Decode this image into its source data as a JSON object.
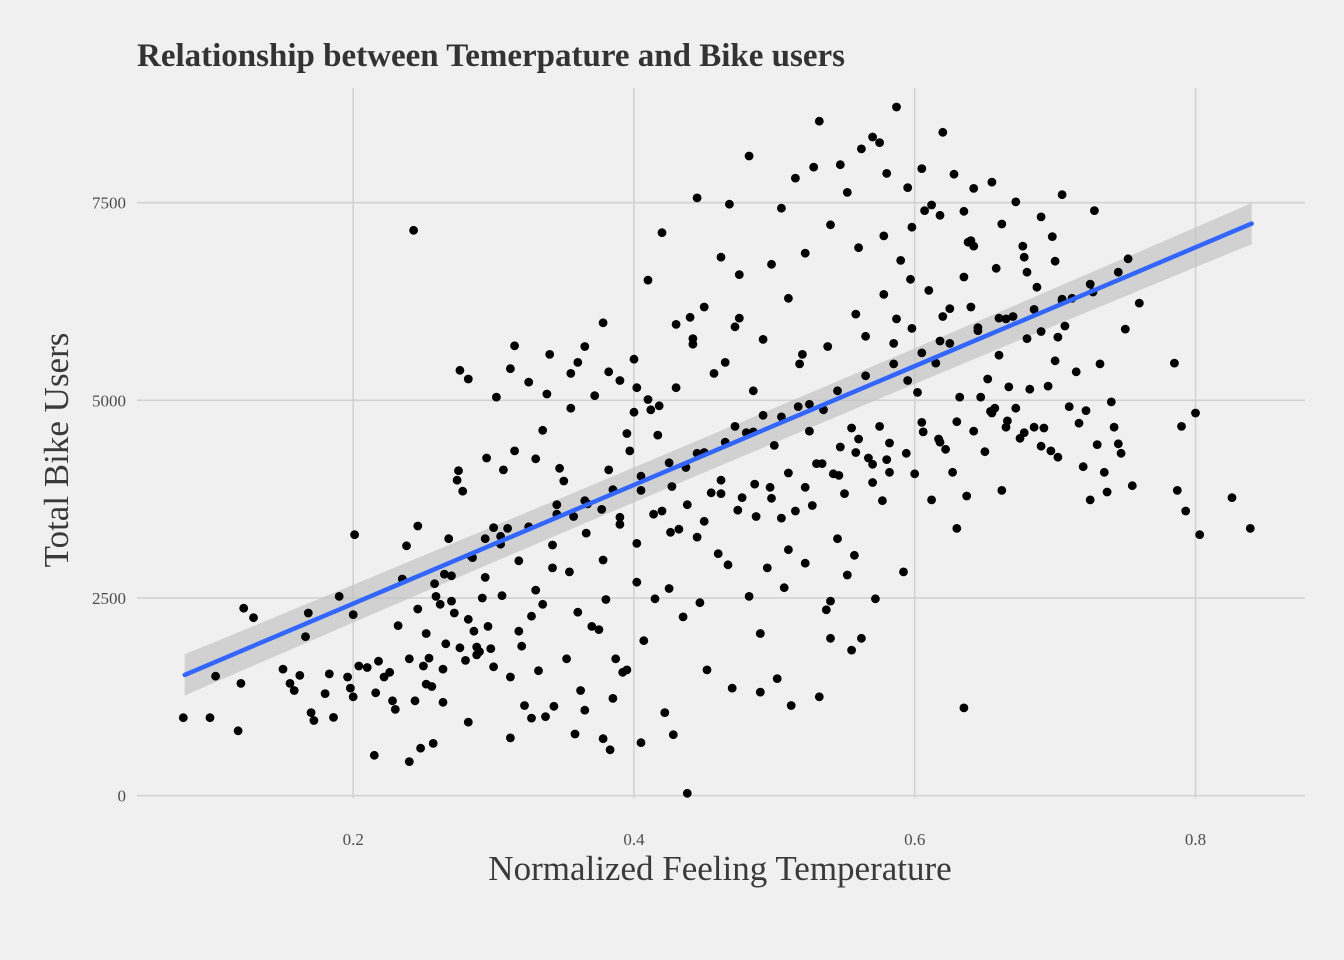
{
  "chart_data": {
    "type": "scatter",
    "title": "Relationship between Temerpature and Bike users",
    "xlabel": "Normalized Feeling Temperature",
    "ylabel": "Total Bike Users",
    "xlim": [
      0.046,
      0.878
    ],
    "ylim": [
      -30,
      8950
    ],
    "x_ticks": [
      0.2,
      0.4,
      0.6,
      0.8
    ],
    "x_tick_labels": [
      "0.2",
      "0.4",
      "0.6",
      "0.8"
    ],
    "y_ticks": [
      0,
      2500,
      5000,
      7500
    ],
    "y_tick_labels": [
      "0",
      "2500",
      "5000",
      "7500"
    ],
    "grid": true,
    "point_color": "#000000",
    "trend_color": "#3366ff",
    "band_color": "#bebebe",
    "trend": {
      "type": "linear",
      "x": [
        0.08,
        0.84
      ],
      "y": [
        1527,
        7235
      ],
      "ci_halfwidth": [
        260,
        220,
        260
      ]
    },
    "points": [
      [
        0.079,
        985
      ],
      [
        0.098,
        985
      ],
      [
        0.102,
        1510
      ],
      [
        0.118,
        820
      ],
      [
        0.12,
        1420
      ],
      [
        0.122,
        2370
      ],
      [
        0.129,
        2250
      ],
      [
        0.15,
        1600
      ],
      [
        0.155,
        1420
      ],
      [
        0.158,
        1330
      ],
      [
        0.162,
        1520
      ],
      [
        0.166,
        2010
      ],
      [
        0.168,
        2310
      ],
      [
        0.17,
        1050
      ],
      [
        0.172,
        950
      ],
      [
        0.18,
        1290
      ],
      [
        0.183,
        1540
      ],
      [
        0.186,
        990
      ],
      [
        0.19,
        2520
      ],
      [
        0.196,
        1500
      ],
      [
        0.198,
        1360
      ],
      [
        0.2,
        1250
      ],
      [
        0.2,
        2290
      ],
      [
        0.201,
        3300
      ],
      [
        0.21,
        1620
      ],
      [
        0.215,
        510
      ],
      [
        0.218,
        1700
      ],
      [
        0.222,
        1500
      ],
      [
        0.226,
        1560
      ],
      [
        0.23,
        1090
      ],
      [
        0.235,
        2740
      ],
      [
        0.238,
        3160
      ],
      [
        0.24,
        430
      ],
      [
        0.243,
        7150
      ],
      [
        0.244,
        1200
      ],
      [
        0.246,
        3410
      ],
      [
        0.248,
        600
      ],
      [
        0.25,
        1640
      ],
      [
        0.252,
        2050
      ],
      [
        0.254,
        1740
      ],
      [
        0.256,
        1380
      ],
      [
        0.257,
        660
      ],
      [
        0.259,
        2520
      ],
      [
        0.262,
        2420
      ],
      [
        0.264,
        1180
      ],
      [
        0.266,
        1920
      ],
      [
        0.268,
        3250
      ],
      [
        0.27,
        2780
      ],
      [
        0.272,
        2310
      ],
      [
        0.274,
        3990
      ],
      [
        0.276,
        5380
      ],
      [
        0.278,
        3850
      ],
      [
        0.28,
        1710
      ],
      [
        0.282,
        930
      ],
      [
        0.284,
        3030
      ],
      [
        0.286,
        2080
      ],
      [
        0.288,
        1880
      ],
      [
        0.29,
        1820
      ],
      [
        0.292,
        2500
      ],
      [
        0.294,
        3250
      ],
      [
        0.296,
        2140
      ],
      [
        0.298,
        1860
      ],
      [
        0.3,
        3390
      ],
      [
        0.302,
        5040
      ],
      [
        0.305,
        3280
      ],
      [
        0.307,
        4120
      ],
      [
        0.31,
        3380
      ],
      [
        0.312,
        730
      ],
      [
        0.315,
        5690
      ],
      [
        0.318,
        2080
      ],
      [
        0.32,
        1890
      ],
      [
        0.322,
        1140
      ],
      [
        0.325,
        5230
      ],
      [
        0.327,
        2270
      ],
      [
        0.33,
        4260
      ],
      [
        0.332,
        1580
      ],
      [
        0.335,
        2420
      ],
      [
        0.337,
        1000
      ],
      [
        0.34,
        5580
      ],
      [
        0.342,
        2880
      ],
      [
        0.345,
        3680
      ],
      [
        0.347,
        4140
      ],
      [
        0.35,
        3980
      ],
      [
        0.352,
        1730
      ],
      [
        0.355,
        5340
      ],
      [
        0.357,
        3530
      ],
      [
        0.36,
        2320
      ],
      [
        0.362,
        1330
      ],
      [
        0.365,
        1080
      ],
      [
        0.367,
        3690
      ],
      [
        0.37,
        2140
      ],
      [
        0.372,
        5060
      ],
      [
        0.375,
        2100
      ],
      [
        0.377,
        3620
      ],
      [
        0.38,
        2480
      ],
      [
        0.382,
        4120
      ],
      [
        0.385,
        1230
      ],
      [
        0.387,
        1730
      ],
      [
        0.39,
        3520
      ],
      [
        0.392,
        1560
      ],
      [
        0.395,
        4580
      ],
      [
        0.397,
        4360
      ],
      [
        0.4,
        5520
      ],
      [
        0.402,
        2700
      ],
      [
        0.405,
        3860
      ],
      [
        0.407,
        1960
      ],
      [
        0.41,
        5010
      ],
      [
        0.412,
        4880
      ],
      [
        0.415,
        2490
      ],
      [
        0.417,
        4560
      ],
      [
        0.42,
        3600
      ],
      [
        0.422,
        1050
      ],
      [
        0.425,
        2620
      ],
      [
        0.427,
        3910
      ],
      [
        0.43,
        5160
      ],
      [
        0.432,
        3370
      ],
      [
        0.435,
        2260
      ],
      [
        0.437,
        4150
      ],
      [
        0.44,
        6050
      ],
      [
        0.442,
        5780
      ],
      [
        0.445,
        3270
      ],
      [
        0.447,
        2440
      ],
      [
        0.45,
        4340
      ],
      [
        0.452,
        1590
      ],
      [
        0.455,
        3830
      ],
      [
        0.457,
        5340
      ],
      [
        0.46,
        3060
      ],
      [
        0.462,
        3990
      ],
      [
        0.465,
        5480
      ],
      [
        0.467,
        2920
      ],
      [
        0.47,
        1360
      ],
      [
        0.472,
        4670
      ],
      [
        0.475,
        6040
      ],
      [
        0.477,
        3770
      ],
      [
        0.48,
        4590
      ],
      [
        0.482,
        2520
      ],
      [
        0.485,
        5120
      ],
      [
        0.487,
        3530
      ],
      [
        0.49,
        1310
      ],
      [
        0.492,
        4810
      ],
      [
        0.495,
        2880
      ],
      [
        0.497,
        3900
      ],
      [
        0.5,
        4430
      ],
      [
        0.502,
        1480
      ],
      [
        0.505,
        3510
      ],
      [
        0.507,
        2630
      ],
      [
        0.51,
        3110
      ],
      [
        0.512,
        1140
      ],
      [
        0.515,
        3600
      ],
      [
        0.517,
        4920
      ],
      [
        0.52,
        5580
      ],
      [
        0.522,
        2940
      ],
      [
        0.525,
        4610
      ],
      [
        0.527,
        3670
      ],
      [
        0.53,
        4200
      ],
      [
        0.532,
        1250
      ],
      [
        0.535,
        4880
      ],
      [
        0.537,
        2350
      ],
      [
        0.54,
        2460
      ],
      [
        0.542,
        4070
      ],
      [
        0.545,
        3250
      ],
      [
        0.547,
        4410
      ],
      [
        0.55,
        3820
      ],
      [
        0.552,
        2790
      ],
      [
        0.555,
        4650
      ],
      [
        0.557,
        3040
      ],
      [
        0.56,
        4510
      ],
      [
        0.562,
        1990
      ],
      [
        0.565,
        5810
      ],
      [
        0.567,
        4270
      ],
      [
        0.57,
        3960
      ],
      [
        0.572,
        2490
      ],
      [
        0.575,
        4670
      ],
      [
        0.577,
        3730
      ],
      [
        0.58,
        4250
      ],
      [
        0.582,
        4090
      ],
      [
        0.585,
        5720
      ],
      [
        0.587,
        6030
      ],
      [
        0.59,
        6770
      ],
      [
        0.592,
        2830
      ],
      [
        0.595,
        5250
      ],
      [
        0.597,
        6530
      ],
      [
        0.6,
        4070
      ],
      [
        0.602,
        5100
      ],
      [
        0.605,
        4720
      ],
      [
        0.607,
        7400
      ],
      [
        0.61,
        6390
      ],
      [
        0.612,
        3740
      ],
      [
        0.615,
        5470
      ],
      [
        0.617,
        4510
      ],
      [
        0.62,
        6060
      ],
      [
        0.622,
        4380
      ],
      [
        0.625,
        6160
      ],
      [
        0.627,
        4090
      ],
      [
        0.63,
        3380
      ],
      [
        0.632,
        5040
      ],
      [
        0.635,
        6560
      ],
      [
        0.637,
        3790
      ],
      [
        0.64,
        7020
      ],
      [
        0.642,
        6950
      ],
      [
        0.645,
        5920
      ],
      [
        0.647,
        5040
      ],
      [
        0.65,
        4350
      ],
      [
        0.652,
        5270
      ],
      [
        0.655,
        4840
      ],
      [
        0.657,
        4900
      ],
      [
        0.66,
        6040
      ],
      [
        0.662,
        3860
      ],
      [
        0.665,
        4660
      ],
      [
        0.667,
        5170
      ],
      [
        0.67,
        6060
      ],
      [
        0.672,
        4900
      ],
      [
        0.675,
        4520
      ],
      [
        0.677,
        6950
      ],
      [
        0.68,
        6620
      ],
      [
        0.682,
        5140
      ],
      [
        0.685,
        4660
      ],
      [
        0.687,
        6430
      ],
      [
        0.69,
        5870
      ],
      [
        0.692,
        4650
      ],
      [
        0.695,
        5180
      ],
      [
        0.697,
        4360
      ],
      [
        0.7,
        6760
      ],
      [
        0.702,
        5800
      ],
      [
        0.705,
        6260
      ],
      [
        0.707,
        5940
      ],
      [
        0.71,
        4920
      ],
      [
        0.712,
        6290
      ],
      [
        0.715,
        5360
      ],
      [
        0.717,
        4710
      ],
      [
        0.72,
        4160
      ],
      [
        0.722,
        4870
      ],
      [
        0.725,
        3740
      ],
      [
        0.727,
        6370
      ],
      [
        0.73,
        4440
      ],
      [
        0.732,
        5460
      ],
      [
        0.735,
        4090
      ],
      [
        0.737,
        3840
      ],
      [
        0.74,
        4980
      ],
      [
        0.742,
        4660
      ],
      [
        0.745,
        4450
      ],
      [
        0.747,
        4330
      ],
      [
        0.75,
        5900
      ],
      [
        0.752,
        6790
      ],
      [
        0.755,
        3920
      ],
      [
        0.76,
        6230
      ],
      [
        0.785,
        5470
      ],
      [
        0.787,
        3860
      ],
      [
        0.79,
        4670
      ],
      [
        0.793,
        3600
      ],
      [
        0.8,
        4840
      ],
      [
        0.803,
        3300
      ],
      [
        0.826,
        3770
      ],
      [
        0.839,
        3380
      ],
      [
        0.438,
        30
      ],
      [
        0.635,
        1110
      ],
      [
        0.383,
        580
      ],
      [
        0.405,
        670
      ],
      [
        0.428,
        770
      ],
      [
        0.49,
        2050
      ],
      [
        0.54,
        1990
      ],
      [
        0.555,
        1840
      ],
      [
        0.378,
        720
      ],
      [
        0.395,
        1590
      ],
      [
        0.358,
        780
      ],
      [
        0.343,
        1130
      ],
      [
        0.327,
        980
      ],
      [
        0.312,
        1500
      ],
      [
        0.3,
        1630
      ],
      [
        0.288,
        1780
      ],
      [
        0.276,
        1870
      ],
      [
        0.264,
        1600
      ],
      [
        0.252,
        1410
      ],
      [
        0.24,
        1730
      ],
      [
        0.228,
        1200
      ],
      [
        0.216,
        1300
      ],
      [
        0.204,
        1640
      ],
      [
        0.265,
        2800
      ],
      [
        0.285,
        3010
      ],
      [
        0.305,
        3180
      ],
      [
        0.325,
        3400
      ],
      [
        0.345,
        3560
      ],
      [
        0.365,
        3730
      ],
      [
        0.385,
        3870
      ],
      [
        0.405,
        4040
      ],
      [
        0.425,
        4210
      ],
      [
        0.445,
        4330
      ],
      [
        0.465,
        4470
      ],
      [
        0.485,
        4600
      ],
      [
        0.505,
        4790
      ],
      [
        0.525,
        4950
      ],
      [
        0.545,
        5120
      ],
      [
        0.565,
        5310
      ],
      [
        0.585,
        5460
      ],
      [
        0.605,
        5600
      ],
      [
        0.625,
        5720
      ],
      [
        0.645,
        5880
      ],
      [
        0.665,
        6030
      ],
      [
        0.685,
        6150
      ],
      [
        0.705,
        6280
      ],
      [
        0.725,
        6470
      ],
      [
        0.745,
        6620
      ],
      [
        0.41,
        6520
      ],
      [
        0.42,
        7120
      ],
      [
        0.445,
        7560
      ],
      [
        0.468,
        7480
      ],
      [
        0.482,
        8090
      ],
      [
        0.505,
        7430
      ],
      [
        0.515,
        7810
      ],
      [
        0.528,
        7950
      ],
      [
        0.532,
        8530
      ],
      [
        0.547,
        7980
      ],
      [
        0.552,
        7630
      ],
      [
        0.562,
        8180
      ],
      [
        0.57,
        8330
      ],
      [
        0.575,
        8260
      ],
      [
        0.58,
        7870
      ],
      [
        0.587,
        8710
      ],
      [
        0.595,
        7690
      ],
      [
        0.605,
        7930
      ],
      [
        0.612,
        7470
      ],
      [
        0.62,
        8390
      ],
      [
        0.628,
        7860
      ],
      [
        0.635,
        7390
      ],
      [
        0.642,
        7680
      ],
      [
        0.655,
        7760
      ],
      [
        0.662,
        7230
      ],
      [
        0.672,
        7510
      ],
      [
        0.69,
        7320
      ],
      [
        0.705,
        7600
      ],
      [
        0.728,
        7400
      ],
      [
        0.275,
        4110
      ],
      [
        0.295,
        4270
      ],
      [
        0.315,
        4360
      ],
      [
        0.335,
        4620
      ],
      [
        0.355,
        4900
      ],
      [
        0.365,
        5680
      ],
      [
        0.378,
        5980
      ],
      [
        0.39,
        5250
      ],
      [
        0.4,
        4850
      ],
      [
        0.418,
        4930
      ],
      [
        0.43,
        5960
      ],
      [
        0.45,
        6180
      ],
      [
        0.462,
        6810
      ],
      [
        0.475,
        6590
      ],
      [
        0.498,
        6720
      ],
      [
        0.51,
        6290
      ],
      [
        0.522,
        6860
      ],
      [
        0.54,
        7220
      ],
      [
        0.56,
        6930
      ],
      [
        0.578,
        7080
      ],
      [
        0.598,
        7190
      ],
      [
        0.618,
        7340
      ],
      [
        0.638,
        7000
      ],
      [
        0.658,
        6670
      ],
      [
        0.678,
        6810
      ],
      [
        0.698,
        7070
      ],
      [
        0.282,
        5270
      ],
      [
        0.312,
        5400
      ],
      [
        0.338,
        5080
      ],
      [
        0.36,
        5480
      ],
      [
        0.382,
        5360
      ],
      [
        0.402,
        5160
      ],
      [
        0.442,
        5710
      ],
      [
        0.472,
        5930
      ],
      [
        0.492,
        5770
      ],
      [
        0.518,
        5460
      ],
      [
        0.538,
        5680
      ],
      [
        0.558,
        6090
      ],
      [
        0.578,
        6340
      ],
      [
        0.598,
        5910
      ],
      [
        0.618,
        5750
      ],
      [
        0.64,
        6180
      ],
      [
        0.66,
        5570
      ],
      [
        0.68,
        5780
      ],
      [
        0.7,
        5500
      ],
      [
        0.232,
        2150
      ],
      [
        0.246,
        2360
      ],
      [
        0.258,
        2680
      ],
      [
        0.27,
        2460
      ],
      [
        0.282,
        2230
      ],
      [
        0.294,
        2760
      ],
      [
        0.306,
        2530
      ],
      [
        0.318,
        2970
      ],
      [
        0.33,
        2600
      ],
      [
        0.342,
        3170
      ],
      [
        0.354,
        2830
      ],
      [
        0.366,
        3320
      ],
      [
        0.378,
        2980
      ],
      [
        0.39,
        3430
      ],
      [
        0.402,
        3190
      ],
      [
        0.414,
        3560
      ],
      [
        0.426,
        3330
      ],
      [
        0.438,
        3680
      ],
      [
        0.45,
        3470
      ],
      [
        0.462,
        3820
      ],
      [
        0.474,
        3610
      ],
      [
        0.486,
        3940
      ],
      [
        0.498,
        3760
      ],
      [
        0.51,
        4080
      ],
      [
        0.522,
        3900
      ],
      [
        0.534,
        4200
      ],
      [
        0.546,
        4050
      ],
      [
        0.558,
        4340
      ],
      [
        0.57,
        4190
      ],
      [
        0.582,
        4460
      ],
      [
        0.594,
        4330
      ],
      [
        0.606,
        4600
      ],
      [
        0.618,
        4470
      ],
      [
        0.63,
        4730
      ],
      [
        0.642,
        4610
      ],
      [
        0.654,
        4860
      ],
      [
        0.666,
        4740
      ],
      [
        0.678,
        4590
      ],
      [
        0.69,
        4420
      ],
      [
        0.702,
        4280
      ]
    ]
  }
}
